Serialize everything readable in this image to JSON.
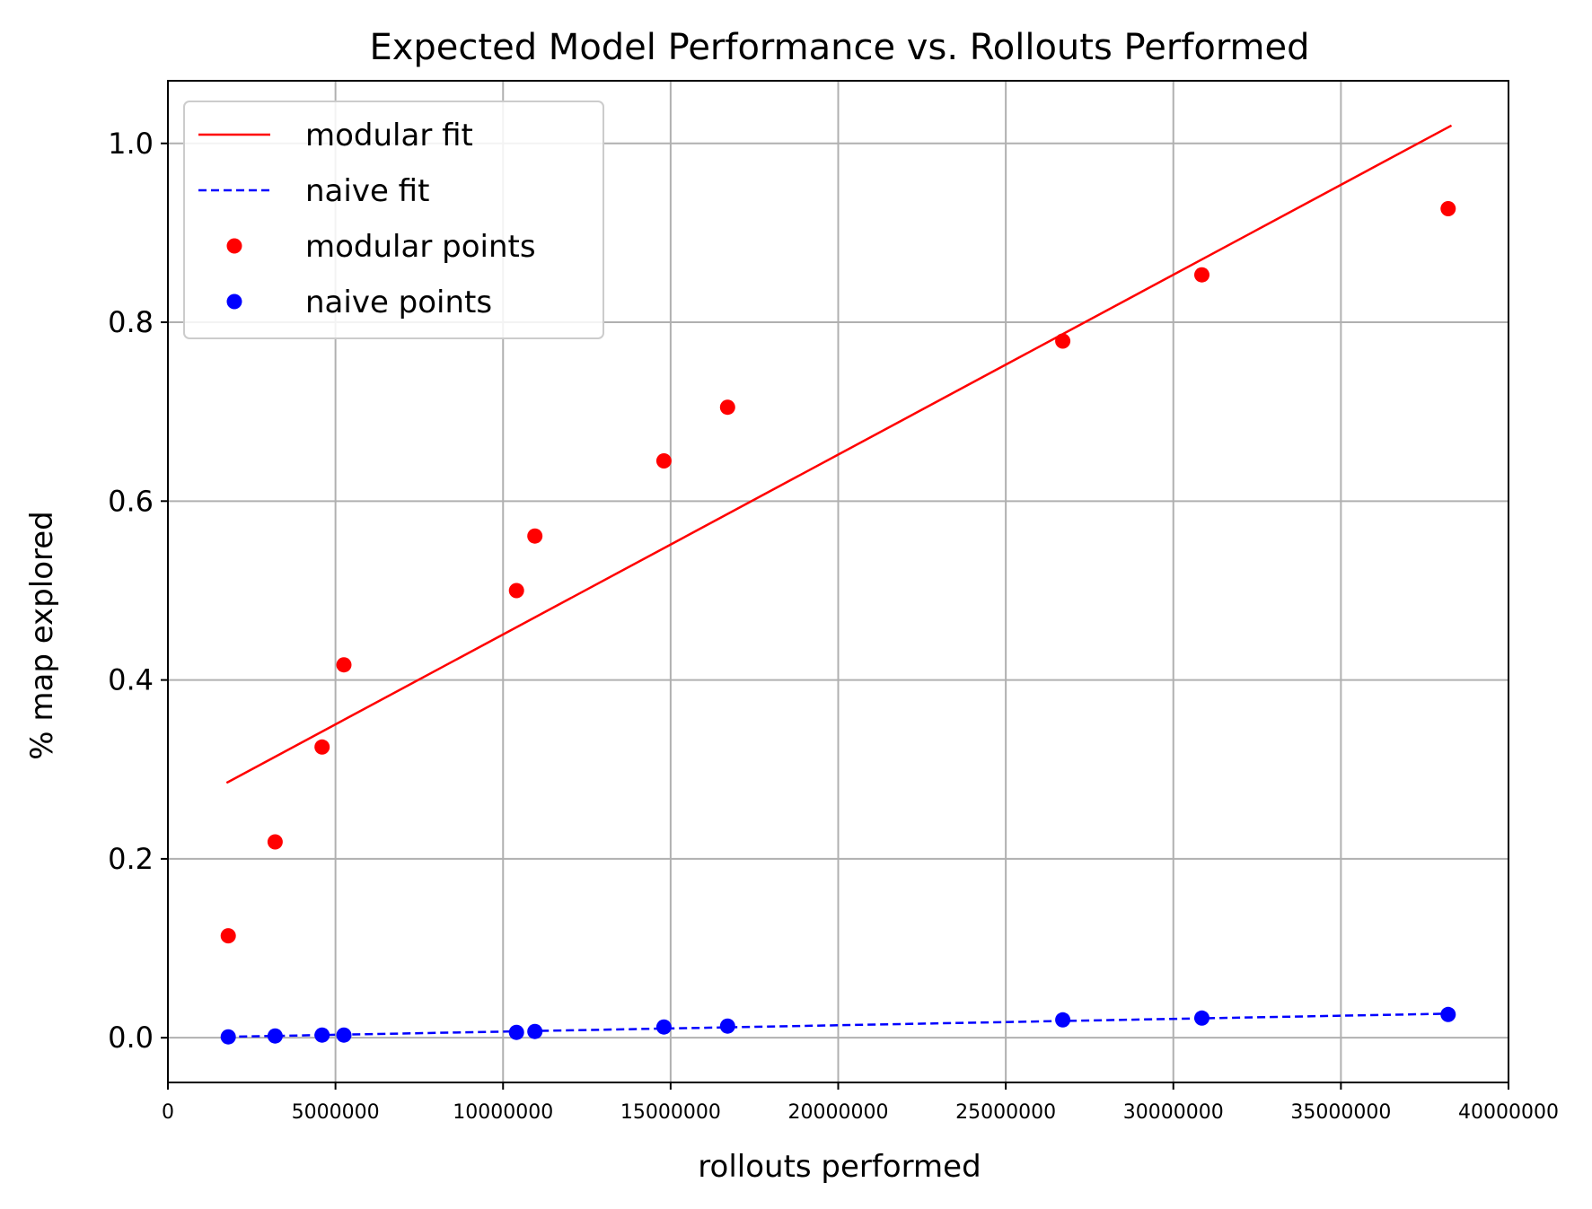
{
  "chart_data": {
    "type": "scatter",
    "title": "Expected Model Performance vs. Rollouts Performed",
    "xlabel": "rollouts performed",
    "ylabel": "% map explored",
    "xlim": [
      0,
      40000000
    ],
    "ylim": [
      -0.05,
      1.07
    ],
    "xticks": [
      0,
      5000000,
      10000000,
      15000000,
      20000000,
      25000000,
      30000000,
      35000000,
      40000000
    ],
    "xtick_labels": [
      "0",
      "5000000",
      "10000000",
      "15000000",
      "20000000",
      "25000000",
      "30000000",
      "35000000",
      "40000000"
    ],
    "yticks": [
      0.0,
      0.2,
      0.4,
      0.6,
      0.8,
      1.0
    ],
    "ytick_labels": [
      "0.0",
      "0.2",
      "0.4",
      "0.6",
      "0.8",
      "1.0"
    ],
    "grid": true,
    "legend_position": "top-left",
    "series": [
      {
        "name": "modular fit",
        "kind": "line",
        "style": "solid",
        "color": "#ff0000",
        "x": [
          1750000,
          38300000
        ],
        "y": [
          0.285,
          1.02
        ]
      },
      {
        "name": "naive fit",
        "kind": "line",
        "style": "dashed",
        "color": "#0000ff",
        "x": [
          1750000,
          38300000
        ],
        "y": [
          0.001,
          0.027
        ]
      },
      {
        "name": "modular points",
        "kind": "points",
        "color": "#ff0000",
        "x": [
          1800000,
          3200000,
          4600000,
          5250000,
          10400000,
          10950000,
          14800000,
          16700000,
          26700000,
          30850000,
          38200000
        ],
        "y": [
          0.114,
          0.219,
          0.325,
          0.417,
          0.5,
          0.561,
          0.645,
          0.705,
          0.779,
          0.853,
          0.927
        ]
      },
      {
        "name": "naive points",
        "kind": "points",
        "color": "#0000ff",
        "x": [
          1800000,
          3200000,
          4600000,
          5250000,
          10400000,
          10950000,
          14800000,
          16700000,
          26700000,
          30850000,
          38200000
        ],
        "y": [
          0.001,
          0.002,
          0.003,
          0.003,
          0.006,
          0.007,
          0.012,
          0.013,
          0.02,
          0.022,
          0.026
        ]
      }
    ]
  }
}
